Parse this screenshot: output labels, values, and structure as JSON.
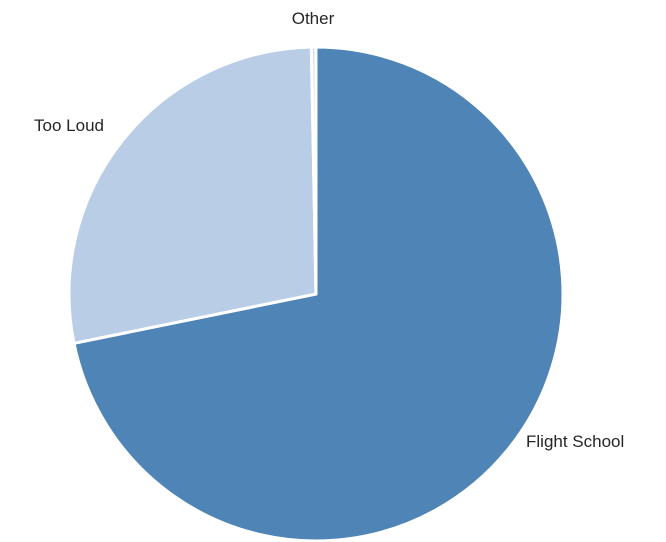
{
  "chart_data": {
    "type": "pie",
    "title": "",
    "categories": [
      "Flight School",
      "Too Loud",
      "Other"
    ],
    "values": [
      71.8,
      27.9,
      0.3
    ],
    "unit": "%",
    "colors": [
      "#4e84b6",
      "#b9cde7",
      "#d9e3f0"
    ],
    "start_angle_deg": 0,
    "direction": "clockwise",
    "legend": "none",
    "data_labels": "category-name-outside"
  }
}
